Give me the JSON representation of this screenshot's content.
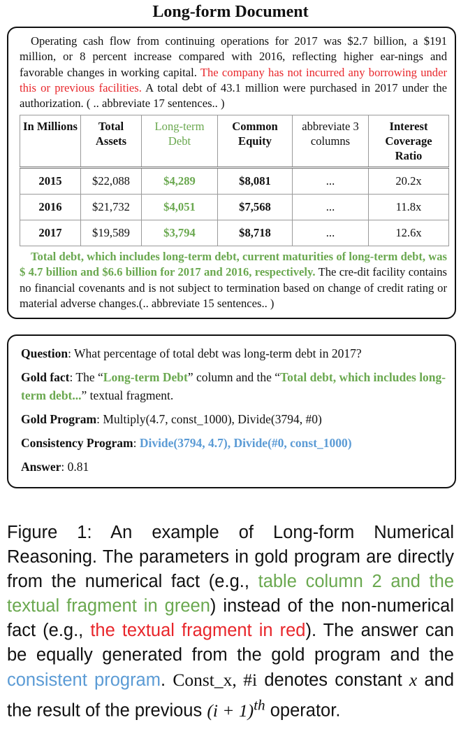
{
  "title": "Long-form Document",
  "document": {
    "para1_a": "Operating cash flow from continuing operations for 2017 was $2.7 billion, a $191 million, or 8 percent increase compared with 2016, reflecting higher ear-nings and favorable changes in working capital.",
    "para1_red": "The company has not incurred any borrowing under this or previous facilities.",
    "para1_b": "A total debt of 43.1 million were purchased in 2017 under the authorization. ( .. abbreviate 17 sentences.. )",
    "table": {
      "headers": [
        "In Millions",
        "Total Assets",
        "Long-term Debt",
        "Common Equity",
        "abbreviate 3 columns",
        "Interest Coverage Ratio"
      ],
      "rows": [
        [
          "2015",
          "$22,088",
          "$4,289",
          "$8,081",
          "...",
          "20.2x"
        ],
        [
          "2016",
          "$21,732",
          "$4,051",
          "$7,568",
          "...",
          "11.8x"
        ],
        [
          "2017",
          "$19,589",
          "$3,794",
          "$8,718",
          "...",
          "12.6x"
        ]
      ]
    },
    "para2_green": "Total debt, which includes long-term debt, current maturities of long-term debt, was $ 4.7 billion and $6.6 billion for 2017 and 2016, respectively.",
    "para2_b": "The cre-dit facility contains no financial covenants and is not subject to termination based on change of credit rating or material adverse changes.(.. abbreviate 15 sentences.. )"
  },
  "qa": {
    "question_label": "Question",
    "question": ": What percentage of total debt was long-term debt in 2017?",
    "gold_fact_label": "Gold fact",
    "gold_fact_a": ": The “",
    "gold_fact_col": "Long-term Debt",
    "gold_fact_b": "” column and the “",
    "gold_fact_frag": "Total debt, which includes long-term debt...",
    "gold_fact_c": "” textual fragment.",
    "gold_program_label": "Gold Program",
    "gold_program": ":  Multiply(4.7, const_1000), Divide(3794, #0)",
    "consistency_label": "Consistency Program",
    "consistency_sep": ": ",
    "consistency_program": "Divide(3794, 4.7), Divide(#0, const_1000)",
    "answer_label": "Answer",
    "answer": ": 0.81"
  },
  "caption": {
    "a": "Figure 1:  An example of Long-form Numerical Reasoning.  The parameters in gold program are directly from the numerical fact (e.g.,",
    "green": "table column 2 and the textual fragment in green",
    "b": ") instead of the non-numerical fact (e.g.,",
    "red": "the textual fragment in red",
    "c": ").  The answer can be equally generated from the gold program and the",
    "blue": "consistent program",
    "d": ".",
    "e_const": "Const_x, #i",
    "e_text1": "denotes constant",
    "e_x": "x",
    "e_text2": "and the result of the previous",
    "e_i": "(i + 1)",
    "e_th": "th",
    "e_text3": "operator."
  },
  "colors": {
    "red": "#e8262b",
    "green": "#6aa84f",
    "blue": "#5b9bd5"
  }
}
